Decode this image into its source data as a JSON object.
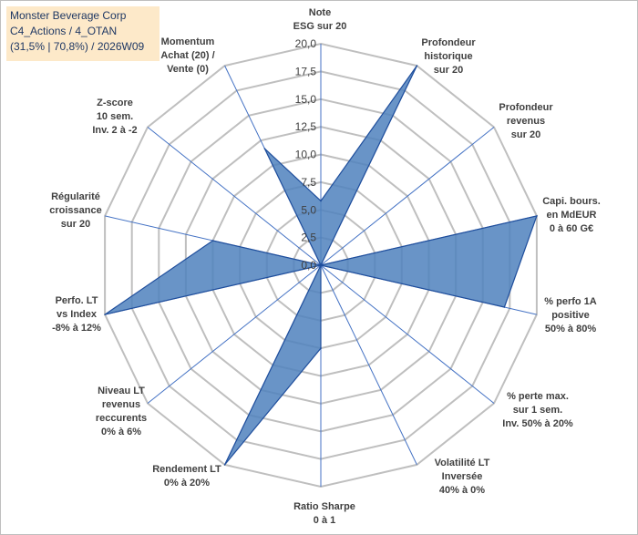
{
  "title_lines": [
    "Monster Beverage Corp",
    "C4_Actions / 4_OTAN",
    "(31,5% | 70,8%) / 2026W09"
  ],
  "chart_data": {
    "type": "radar",
    "rmax": 20,
    "ticks": [
      "0,0",
      "2,5",
      "5,0",
      "7,5",
      "10,0",
      "12,5",
      "15,0",
      "17,5",
      "20,0"
    ],
    "axes": [
      {
        "label": [
          "Note",
          "ESG sur 20"
        ],
        "value": 5.8
      },
      {
        "label": [
          "Profondeur",
          "historique",
          "sur 20"
        ],
        "value": 20.0
      },
      {
        "label": [
          "Profondeur",
          "revenus",
          "sur 20"
        ],
        "value": 0.0
      },
      {
        "label": [
          "Capi. bours.",
          "en MdEUR",
          "0 à 60 G€"
        ],
        "value": 20.0
      },
      {
        "label": [
          "% perfo 1A",
          "positive",
          "50% à 80%"
        ],
        "value": 17.0
      },
      {
        "label": [
          "% perte max.",
          "sur 1 sem.",
          "Inv. 50% à 20%"
        ],
        "value": 0.0
      },
      {
        "label": [
          "Volatilité LT",
          "Inversée",
          "40% à 0%"
        ],
        "value": 0.0
      },
      {
        "label": [
          "Ratio Sharpe",
          "0 à 1"
        ],
        "value": 7.5
      },
      {
        "label": [
          "Rendement LT",
          "0% à 20%"
        ],
        "value": 20.0
      },
      {
        "label": [
          "Niveau LT",
          "revenus",
          "reccurents",
          "0% à 6%"
        ],
        "value": 0.0
      },
      {
        "label": [
          "Perfo. LT",
          "vs Index",
          "-8% à 12%"
        ],
        "value": 20.0
      },
      {
        "label": [
          "Régularité",
          "croissance",
          "sur 20"
        ],
        "value": 10.0
      },
      {
        "label": [
          "Z-score",
          "10 sem.",
          "Inv. 2 à -2"
        ],
        "value": 0.0
      },
      {
        "label": [
          "Momentum",
          "Achat (20) /",
          "Vente (0)"
        ],
        "value": 11.7
      }
    ],
    "colors": {
      "fill": "#4f81bd",
      "stroke": "#1f4e9c",
      "grid": "#bfbfbf",
      "spoke": "#4472c4"
    }
  }
}
